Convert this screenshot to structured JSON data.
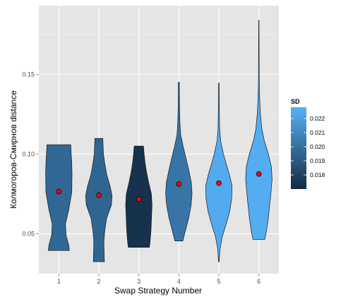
{
  "chart_data": {
    "type": "violin",
    "xlabel": "Swap Strategy Number",
    "ylabel": "Колмогоров-Смирнов distance",
    "categories": [
      "1",
      "2",
      "3",
      "4",
      "5",
      "6"
    ],
    "ylim": [
      0.025,
      0.193
    ],
    "yticks": [
      0.05,
      0.1,
      0.15
    ],
    "ytick_labels": [
      "0.05",
      "0.10",
      "0.15"
    ],
    "grid": true,
    "background": "#e5e5e5",
    "series": [
      {
        "category": "1",
        "sd": 0.0196,
        "mean": 0.0765,
        "min": 0.0395,
        "max": 0.1058,
        "profile": [
          [
            0.0395,
            0.8
          ],
          [
            0.043,
            0.75
          ],
          [
            0.049,
            0.55
          ],
          [
            0.056,
            0.5
          ],
          [
            0.065,
            0.75
          ],
          [
            0.076,
            0.98
          ],
          [
            0.088,
            1.0
          ],
          [
            0.096,
            0.97
          ],
          [
            0.101,
            0.93
          ],
          [
            0.1058,
            0.9
          ]
        ]
      },
      {
        "category": "2",
        "sd": 0.0195,
        "mean": 0.0742,
        "min": 0.0325,
        "max": 0.1098,
        "profile": [
          [
            0.0325,
            0.42
          ],
          [
            0.038,
            0.4
          ],
          [
            0.045,
            0.38
          ],
          [
            0.052,
            0.45
          ],
          [
            0.06,
            0.6
          ],
          [
            0.068,
            0.95
          ],
          [
            0.074,
            1.0
          ],
          [
            0.08,
            0.85
          ],
          [
            0.087,
            0.6
          ],
          [
            0.094,
            0.45
          ],
          [
            0.1,
            0.35
          ],
          [
            0.1098,
            0.3
          ]
        ]
      },
      {
        "category": "3",
        "sd": 0.0173,
        "mean": 0.0718,
        "min": 0.0415,
        "max": 0.105,
        "profile": [
          [
            0.0415,
            0.8
          ],
          [
            0.045,
            0.85
          ],
          [
            0.052,
            0.92
          ],
          [
            0.06,
            0.96
          ],
          [
            0.068,
            1.0
          ],
          [
            0.075,
            0.95
          ],
          [
            0.082,
            0.75
          ],
          [
            0.088,
            0.6
          ],
          [
            0.094,
            0.48
          ],
          [
            0.1,
            0.4
          ],
          [
            0.105,
            0.35
          ]
        ]
      },
      {
        "category": "4",
        "sd": 0.0202,
        "mean": 0.0812,
        "min": 0.0455,
        "max": 0.145,
        "profile": [
          [
            0.0455,
            0.3
          ],
          [
            0.052,
            0.5
          ],
          [
            0.06,
            0.75
          ],
          [
            0.068,
            0.93
          ],
          [
            0.075,
            1.0
          ],
          [
            0.082,
            0.95
          ],
          [
            0.09,
            0.75
          ],
          [
            0.097,
            0.55
          ],
          [
            0.105,
            0.32
          ],
          [
            0.112,
            0.14
          ],
          [
            0.12,
            0.08
          ],
          [
            0.13,
            0.05
          ],
          [
            0.14,
            0.04
          ],
          [
            0.145,
            0.04
          ]
        ]
      },
      {
        "category": "5",
        "sd": 0.0225,
        "mean": 0.0818,
        "min": 0.0325,
        "max": 0.1445,
        "profile": [
          [
            0.0325,
            0.03
          ],
          [
            0.04,
            0.08
          ],
          [
            0.048,
            0.25
          ],
          [
            0.056,
            0.55
          ],
          [
            0.064,
            0.82
          ],
          [
            0.072,
            0.97
          ],
          [
            0.08,
            1.0
          ],
          [
            0.087,
            0.8
          ],
          [
            0.094,
            0.55
          ],
          [
            0.101,
            0.32
          ],
          [
            0.108,
            0.14
          ],
          [
            0.116,
            0.06
          ],
          [
            0.125,
            0.04
          ],
          [
            0.135,
            0.03
          ],
          [
            0.1445,
            0.02
          ]
        ]
      },
      {
        "category": "6",
        "sd": 0.0226,
        "mean": 0.0875,
        "min": 0.0465,
        "max": 0.184,
        "profile": [
          [
            0.0465,
            0.45
          ],
          [
            0.052,
            0.58
          ],
          [
            0.06,
            0.72
          ],
          [
            0.068,
            0.82
          ],
          [
            0.076,
            0.92
          ],
          [
            0.084,
            1.0
          ],
          [
            0.092,
            0.95
          ],
          [
            0.1,
            0.72
          ],
          [
            0.108,
            0.42
          ],
          [
            0.116,
            0.22
          ],
          [
            0.125,
            0.12
          ],
          [
            0.135,
            0.06
          ],
          [
            0.145,
            0.03
          ],
          [
            0.16,
            0.02
          ],
          [
            0.175,
            0.015
          ],
          [
            0.184,
            0.01
          ]
        ]
      }
    ],
    "legend": {
      "title": "SD",
      "placement": "right",
      "ticks": [
        0.018,
        0.019,
        0.02,
        0.021,
        0.022
      ],
      "tick_labels": [
        "0.018",
        "0.019",
        "0.020",
        "0.021",
        "0.022"
      ],
      "range": [
        0.017,
        0.0228
      ],
      "color_low": "#132B43",
      "color_high": "#56B1F7"
    },
    "mean_point_color": "#ff0000"
  }
}
